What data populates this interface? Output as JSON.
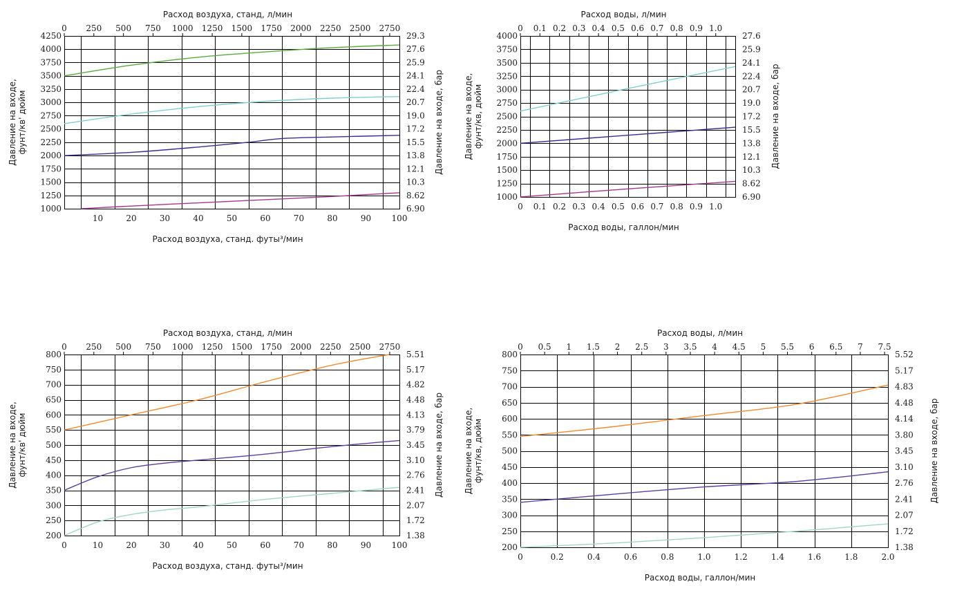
{
  "colors": {
    "green": "#5aab3e",
    "cyan": "#7fcfcf",
    "navy": "#3b2d8f",
    "magenta": "#a3368f",
    "orange": "#f08a2c",
    "purple": "#5b3ea0",
    "mint": "#9fd6c7"
  },
  "chart_data": [
    {
      "type": "line",
      "title": "",
      "xlabel": "Расход воздуха, станд. футы³/мин",
      "x2label": "Расход воздуха, станд, л/мин",
      "ylabel": [
        "Давление на входе,",
        "фунт/кв' дюйм"
      ],
      "y2label": "Давление на входе, бар",
      "xlim": [
        0,
        100
      ],
      "ylim": [
        1000,
        4250
      ],
      "x_ticks": [
        10,
        20,
        30,
        40,
        50,
        60,
        70,
        80,
        90,
        100
      ],
      "x_tick_labels": [
        "10",
        "20",
        "30",
        "40",
        "50",
        "60",
        "70",
        "80",
        "90",
        "100"
      ],
      "x_grid": [
        0,
        5,
        15,
        25,
        35,
        45,
        55,
        65,
        75,
        85,
        95,
        100
      ],
      "x2_ticks": [
        0,
        250,
        500,
        750,
        1000,
        1250,
        1500,
        1750,
        2000,
        2250,
        2500,
        2750
      ],
      "x2_tick_labels": [
        "0",
        "250",
        "500",
        "750",
        "1000",
        "1250",
        "1500",
        "1750",
        "2000",
        "2250",
        "2500",
        "2750"
      ],
      "x2_max": 2832,
      "y_ticks": [
        1000,
        1250,
        1500,
        1750,
        2000,
        2250,
        2500,
        2750,
        3000,
        3250,
        3500,
        3750,
        4000,
        4250
      ],
      "y_tick_labels": [
        "1000",
        "1250",
        "1500",
        "1750",
        "2000",
        "2250",
        "2500",
        "2750",
        "3000",
        "3250",
        "3500",
        "3750",
        "4000",
        "4250"
      ],
      "y2_tick_labels": [
        "6.90",
        "8.62",
        "10.3",
        "12.1",
        "13.8",
        "15.5",
        "17.2",
        "19.0",
        "20.7",
        "22.4",
        "24.1",
        "25.9",
        "27.6",
        "29.3"
      ],
      "series": [
        {
          "color": "green",
          "x": [
            0,
            20,
            40,
            60,
            80,
            100
          ],
          "y": [
            3500,
            3700,
            3850,
            3950,
            4030,
            4080
          ]
        },
        {
          "color": "cyan",
          "x": [
            0,
            20,
            40,
            60,
            80,
            100
          ],
          "y": [
            2600,
            2780,
            2920,
            3020,
            3080,
            3110
          ]
        },
        {
          "color": "navy",
          "x": [
            0,
            20,
            40,
            55,
            65,
            80,
            100
          ],
          "y": [
            2000,
            2060,
            2160,
            2250,
            2320,
            2350,
            2380
          ]
        },
        {
          "color": "magenta",
          "x": [
            5,
            20,
            40,
            60,
            80,
            100
          ],
          "y": [
            1000,
            1050,
            1110,
            1170,
            1230,
            1300
          ]
        }
      ]
    },
    {
      "type": "line",
      "title": "",
      "xlabel": "Расход воды, галлон/мин",
      "x2label": "Расход воды, л/мин",
      "ylabel": [
        "Давление на входе,",
        "фунт/кв, дюйм"
      ],
      "y2label": "Давление на входе, бар",
      "xlim": [
        0,
        1.1
      ],
      "ylim": [
        1000,
        4000
      ],
      "x_ticks": [
        0,
        0.1,
        0.2,
        0.3,
        0.4,
        0.5,
        0.6,
        0.7,
        0.8,
        0.9,
        1.0
      ],
      "x_tick_labels": [
        "0",
        "0.1",
        "0.2",
        "0.3",
        "0.4",
        "0.5",
        "0.6",
        "0.7",
        "0.8",
        "0.9",
        "1.0"
      ],
      "x_grid": [
        0,
        0.05,
        0.15,
        0.25,
        0.35,
        0.45,
        0.55,
        0.65,
        0.75,
        0.85,
        0.95,
        1.05,
        1.1
      ],
      "x2_ticks": [
        0,
        0.1,
        0.2,
        0.3,
        0.4,
        0.5,
        0.6,
        0.7,
        0.8,
        0.9,
        1.0
      ],
      "x2_tick_labels": [
        "0",
        "0.1",
        "0.2",
        "0.3",
        "0.4",
        "0.5",
        "0.6",
        "0.7",
        "0.8",
        "0.9",
        "1.0"
      ],
      "x2_max": 1.1,
      "y_ticks": [
        1000,
        1250,
        1500,
        1750,
        2000,
        2250,
        2500,
        2750,
        3000,
        3250,
        3500,
        3750,
        4000
      ],
      "y_tick_labels": [
        "1000",
        "1250",
        "1500",
        "1750",
        "2000",
        "2250",
        "2500",
        "2750",
        "3000",
        "3250",
        "3500",
        "3750",
        "4000"
      ],
      "y2_tick_labels": [
        "6.90",
        "8.62",
        "10.3",
        "12.1",
        "13.8",
        "15.5",
        "17.2",
        "19.0",
        "20.7",
        "22.4",
        "24.1",
        "25.9",
        "27.6"
      ],
      "series": [
        {
          "color": "cyan",
          "x": [
            0,
            0.55,
            1.1
          ],
          "y": [
            2600,
            3020,
            3430
          ]
        },
        {
          "color": "navy",
          "x": [
            0,
            0.55,
            1.1
          ],
          "y": [
            2000,
            2150,
            2300
          ]
        },
        {
          "color": "magenta",
          "x": [
            0,
            0.55,
            1.1
          ],
          "y": [
            1000,
            1150,
            1290
          ]
        }
      ]
    },
    {
      "type": "line",
      "title": "",
      "xlabel": "Расход воздуха, станд. футы³/мин",
      "x2label": "Расход воздуха, станд, л/мин",
      "ylabel": [
        "Давление на входе,",
        "фунт/кв' дюйм"
      ],
      "y2label": "Давление на входе, бар",
      "xlim": [
        0,
        100
      ],
      "ylim": [
        200,
        800
      ],
      "x_ticks": [
        0,
        10,
        20,
        30,
        40,
        50,
        60,
        70,
        80,
        90,
        100
      ],
      "x_tick_labels": [
        "0",
        "10",
        "20",
        "30",
        "40",
        "50",
        "60",
        "70",
        "80",
        "90",
        "100"
      ],
      "x_grid": [
        0,
        5,
        15,
        25,
        35,
        45,
        55,
        65,
        75,
        85,
        95,
        100
      ],
      "x2_ticks": [
        0,
        250,
        500,
        750,
        1000,
        1250,
        1500,
        1750,
        2000,
        2250,
        2500,
        2750
      ],
      "x2_tick_labels": [
        "0",
        "250",
        "500",
        "750",
        "1000",
        "1250",
        "1500",
        "1750",
        "2000",
        "2250",
        "2500",
        "2750"
      ],
      "x2_max": 2832,
      "y_ticks": [
        200,
        250,
        300,
        350,
        400,
        450,
        500,
        550,
        600,
        650,
        700,
        750,
        800
      ],
      "y_tick_labels": [
        "200",
        "250",
        "300",
        "350",
        "400",
        "450",
        "500",
        "550",
        "600",
        "650",
        "700",
        "750",
        "800"
      ],
      "y2_tick_labels": [
        "1.38",
        "1.72",
        "2.07",
        "2.41",
        "2.76",
        "3.10",
        "3.45",
        "3.79",
        "4.13",
        "4.48",
        "4.82",
        "5.17",
        "5.51"
      ],
      "series": [
        {
          "color": "orange",
          "x": [
            0,
            20,
            40,
            60,
            80,
            97
          ],
          "y": [
            550,
            600,
            650,
            710,
            765,
            800
          ]
        },
        {
          "color": "purple",
          "x": [
            0,
            10,
            20,
            30,
            40,
            60,
            80,
            100
          ],
          "y": [
            350,
            395,
            425,
            440,
            450,
            470,
            495,
            515
          ]
        },
        {
          "color": "mint",
          "x": [
            0,
            10,
            20,
            30,
            40,
            60,
            80,
            100
          ],
          "y": [
            200,
            245,
            270,
            285,
            295,
            320,
            340,
            360
          ]
        }
      ]
    },
    {
      "type": "line",
      "title": "",
      "xlabel": "Расход воды, галлон/мин",
      "x2label": "Расход воды, л/мин",
      "ylabel": [
        "Давление на входе,",
        "фунт/кв, дюйм"
      ],
      "y2label": "Давление на входе, бар",
      "xlim": [
        0,
        2.0
      ],
      "ylim": [
        200,
        800
      ],
      "x_ticks": [
        0,
        0.2,
        0.4,
        0.6,
        0.8,
        1.0,
        1.2,
        1.4,
        1.6,
        1.8,
        2.0
      ],
      "x_tick_labels": [
        "0",
        "0.2",
        "0.4",
        "0.6",
        "0.8",
        "1.0",
        "1.2",
        "1.4",
        "1.6",
        "1.8",
        "2.0"
      ],
      "x_grid": [
        0,
        0.2,
        0.4,
        0.6,
        0.8,
        1.0,
        1.2,
        1.4,
        1.6,
        1.8,
        2.0
      ],
      "x2_ticks": [
        0,
        0.5,
        1,
        1.5,
        2,
        2.5,
        3,
        3.5,
        4,
        4.5,
        5,
        5.5,
        6,
        6.5,
        7,
        7.5
      ],
      "x2_tick_labels": [
        "0",
        "0.5",
        "1",
        "1.5",
        "2",
        "2.5",
        "3",
        "3.5",
        "4",
        "4.5",
        "5",
        "5.5",
        "6",
        "6.5",
        "7",
        "7.5"
      ],
      "x2_max": 7.57,
      "y_ticks": [
        200,
        250,
        300,
        350,
        400,
        450,
        500,
        550,
        600,
        650,
        700,
        750,
        800
      ],
      "y_tick_labels": [
        "200",
        "250",
        "300",
        "350",
        "400",
        "450",
        "500",
        "550",
        "600",
        "650",
        "700",
        "750",
        "800"
      ],
      "y2_tick_labels": [
        "1.38",
        "1.72",
        "2.07",
        "2.41",
        "2.76",
        "3.10",
        "3.45",
        "3.80",
        "4.14",
        "4.48",
        "4.83",
        "5.17",
        "5.52"
      ],
      "series": [
        {
          "color": "orange",
          "x": [
            0,
            0.5,
            1.0,
            1.5,
            2.0
          ],
          "y": [
            545,
            575,
            610,
            645,
            705
          ]
        },
        {
          "color": "purple",
          "x": [
            0,
            0.5,
            1.0,
            1.5,
            2.0
          ],
          "y": [
            340,
            365,
            388,
            405,
            435
          ]
        },
        {
          "color": "mint",
          "x": [
            0,
            0.5,
            1.0,
            1.5,
            2.0
          ],
          "y": [
            200,
            213,
            230,
            250,
            273
          ]
        }
      ]
    }
  ]
}
